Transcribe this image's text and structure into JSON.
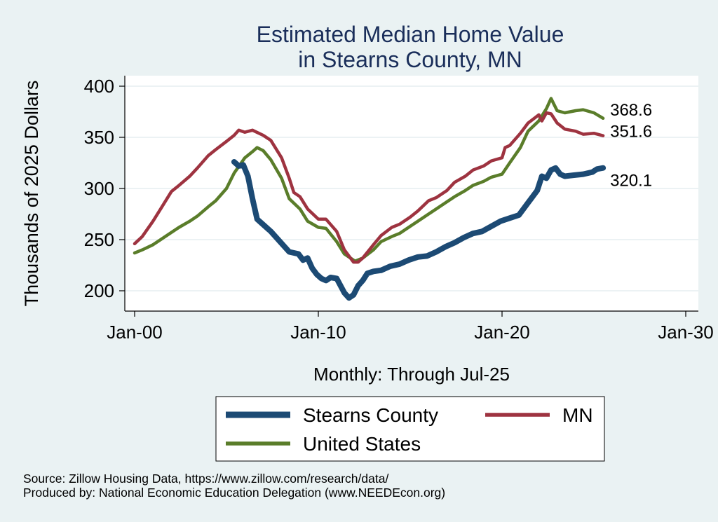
{
  "chart_data": {
    "type": "line",
    "title": [
      "Estimated Median Home Value",
      "in Stearns County, MN"
    ],
    "ylabel": "Thousands of 2025 Dollars",
    "xlabel": "Monthly: Through Jul-25",
    "ylim": [
      190,
      410
    ],
    "xlim": [
      "2000-01",
      "2030-01"
    ],
    "y_ticks": [
      200,
      250,
      300,
      350,
      400
    ],
    "x_ticks": [
      {
        "date": "2000-01",
        "label": "Jan-00"
      },
      {
        "date": "2010-01",
        "label": "Jan-10"
      },
      {
        "date": "2020-01",
        "label": "Jan-20"
      },
      {
        "date": "2030-01",
        "label": "Jan-30"
      }
    ],
    "grid": true,
    "legend_position": "bottom",
    "series": [
      {
        "name": "Stearns County",
        "color": "#1c4a74",
        "end_label": "320.1",
        "points": [
          [
            "2005-06",
            326
          ],
          [
            "2005-09",
            322
          ],
          [
            "2005-12",
            323
          ],
          [
            "2006-03",
            312
          ],
          [
            "2006-06",
            290
          ],
          [
            "2006-09",
            270
          ],
          [
            "2006-12",
            266
          ],
          [
            "2007-06",
            258
          ],
          [
            "2007-12",
            248
          ],
          [
            "2008-06",
            238
          ],
          [
            "2008-12",
            236
          ],
          [
            "2009-03",
            230
          ],
          [
            "2009-06",
            232
          ],
          [
            "2009-09",
            222
          ],
          [
            "2009-12",
            216
          ],
          [
            "2010-03",
            212
          ],
          [
            "2010-06",
            210
          ],
          [
            "2010-09",
            213
          ],
          [
            "2011-01",
            212
          ],
          [
            "2011-06",
            198
          ],
          [
            "2011-09",
            193
          ],
          [
            "2011-12",
            196
          ],
          [
            "2012-03",
            205
          ],
          [
            "2012-06",
            210
          ],
          [
            "2012-09",
            217
          ],
          [
            "2013-01",
            219
          ],
          [
            "2013-06",
            220
          ],
          [
            "2013-12",
            224
          ],
          [
            "2014-06",
            226
          ],
          [
            "2014-12",
            230
          ],
          [
            "2015-06",
            233
          ],
          [
            "2015-12",
            234
          ],
          [
            "2016-06",
            238
          ],
          [
            "2016-12",
            243
          ],
          [
            "2017-06",
            247
          ],
          [
            "2017-12",
            252
          ],
          [
            "2018-06",
            256
          ],
          [
            "2018-12",
            258
          ],
          [
            "2019-06",
            263
          ],
          [
            "2019-12",
            268
          ],
          [
            "2020-06",
            271
          ],
          [
            "2020-12",
            274
          ],
          [
            "2021-06",
            286
          ],
          [
            "2021-12",
            298
          ],
          [
            "2022-03",
            312
          ],
          [
            "2022-06",
            310
          ],
          [
            "2022-09",
            318
          ],
          [
            "2022-12",
            320
          ],
          [
            "2023-03",
            314
          ],
          [
            "2023-06",
            312
          ],
          [
            "2023-12",
            313
          ],
          [
            "2024-06",
            314
          ],
          [
            "2024-12",
            316
          ],
          [
            "2025-03",
            319
          ],
          [
            "2025-07",
            320.1
          ]
        ]
      },
      {
        "name": "MN",
        "color": "#9e3340",
        "end_label": "351.6",
        "points": [
          [
            "2000-01",
            246
          ],
          [
            "2000-06",
            253
          ],
          [
            "2001-01",
            268
          ],
          [
            "2001-06",
            280
          ],
          [
            "2002-01",
            297
          ],
          [
            "2002-06",
            303
          ],
          [
            "2003-01",
            312
          ],
          [
            "2003-06",
            320
          ],
          [
            "2004-01",
            332
          ],
          [
            "2004-06",
            338
          ],
          [
            "2005-01",
            346
          ],
          [
            "2005-06",
            352
          ],
          [
            "2005-09",
            357
          ],
          [
            "2006-01",
            355
          ],
          [
            "2006-06",
            357
          ],
          [
            "2007-01",
            352
          ],
          [
            "2007-06",
            347
          ],
          [
            "2008-01",
            330
          ],
          [
            "2008-06",
            310
          ],
          [
            "2008-09",
            296
          ],
          [
            "2009-01",
            292
          ],
          [
            "2009-06",
            280
          ],
          [
            "2010-01",
            270
          ],
          [
            "2010-06",
            270
          ],
          [
            "2011-01",
            258
          ],
          [
            "2011-06",
            240
          ],
          [
            "2011-12",
            228
          ],
          [
            "2012-03",
            228
          ],
          [
            "2012-06",
            232
          ],
          [
            "2013-01",
            245
          ],
          [
            "2013-06",
            254
          ],
          [
            "2014-01",
            262
          ],
          [
            "2014-06",
            265
          ],
          [
            "2015-01",
            272
          ],
          [
            "2015-06",
            278
          ],
          [
            "2016-01",
            288
          ],
          [
            "2016-06",
            291
          ],
          [
            "2017-01",
            298
          ],
          [
            "2017-06",
            306
          ],
          [
            "2018-01",
            312
          ],
          [
            "2018-06",
            318
          ],
          [
            "2019-01",
            322
          ],
          [
            "2019-06",
            327
          ],
          [
            "2020-01",
            330
          ],
          [
            "2020-03",
            340
          ],
          [
            "2020-06",
            342
          ],
          [
            "2021-01",
            354
          ],
          [
            "2021-06",
            364
          ],
          [
            "2022-01",
            372
          ],
          [
            "2022-03",
            366
          ],
          [
            "2022-06",
            374
          ],
          [
            "2022-09",
            373
          ],
          [
            "2023-01",
            364
          ],
          [
            "2023-06",
            358
          ],
          [
            "2024-01",
            356
          ],
          [
            "2024-06",
            353
          ],
          [
            "2025-01",
            354
          ],
          [
            "2025-07",
            351.6
          ]
        ]
      },
      {
        "name": "United States",
        "color": "#5a7d2a",
        "end_label": "368.6",
        "points": [
          [
            "2000-01",
            237
          ],
          [
            "2000-06",
            240
          ],
          [
            "2001-01",
            245
          ],
          [
            "2001-06",
            250
          ],
          [
            "2002-01",
            257
          ],
          [
            "2002-06",
            262
          ],
          [
            "2003-01",
            268
          ],
          [
            "2003-06",
            273
          ],
          [
            "2004-01",
            282
          ],
          [
            "2004-06",
            288
          ],
          [
            "2005-01",
            300
          ],
          [
            "2005-06",
            315
          ],
          [
            "2006-01",
            330
          ],
          [
            "2006-06",
            336
          ],
          [
            "2006-09",
            340
          ],
          [
            "2007-01",
            337
          ],
          [
            "2007-06",
            328
          ],
          [
            "2008-01",
            310
          ],
          [
            "2008-06",
            290
          ],
          [
            "2009-01",
            280
          ],
          [
            "2009-06",
            268
          ],
          [
            "2010-01",
            262
          ],
          [
            "2010-06",
            261
          ],
          [
            "2011-01",
            248
          ],
          [
            "2011-06",
            236
          ],
          [
            "2012-01",
            229
          ],
          [
            "2012-06",
            232
          ],
          [
            "2013-01",
            240
          ],
          [
            "2013-06",
            248
          ],
          [
            "2014-01",
            253
          ],
          [
            "2014-06",
            256
          ],
          [
            "2015-01",
            263
          ],
          [
            "2015-06",
            268
          ],
          [
            "2016-01",
            275
          ],
          [
            "2016-06",
            280
          ],
          [
            "2017-01",
            287
          ],
          [
            "2017-06",
            292
          ],
          [
            "2018-01",
            298
          ],
          [
            "2018-06",
            303
          ],
          [
            "2019-01",
            307
          ],
          [
            "2019-06",
            311
          ],
          [
            "2020-01",
            314
          ],
          [
            "2020-06",
            325
          ],
          [
            "2021-01",
            340
          ],
          [
            "2021-06",
            356
          ],
          [
            "2022-01",
            366
          ],
          [
            "2022-06",
            378
          ],
          [
            "2022-09",
            388
          ],
          [
            "2023-01",
            376
          ],
          [
            "2023-06",
            374
          ],
          [
            "2024-01",
            376
          ],
          [
            "2024-06",
            377
          ],
          [
            "2025-01",
            374
          ],
          [
            "2025-07",
            368.6
          ]
        ]
      }
    ]
  },
  "source_note": "Source: Zillow Housing Data, https://www.zillow.com/research/data/",
  "producer_note": "Produced by: National Economic Education Delegation (www.NEEDEcon.org)"
}
